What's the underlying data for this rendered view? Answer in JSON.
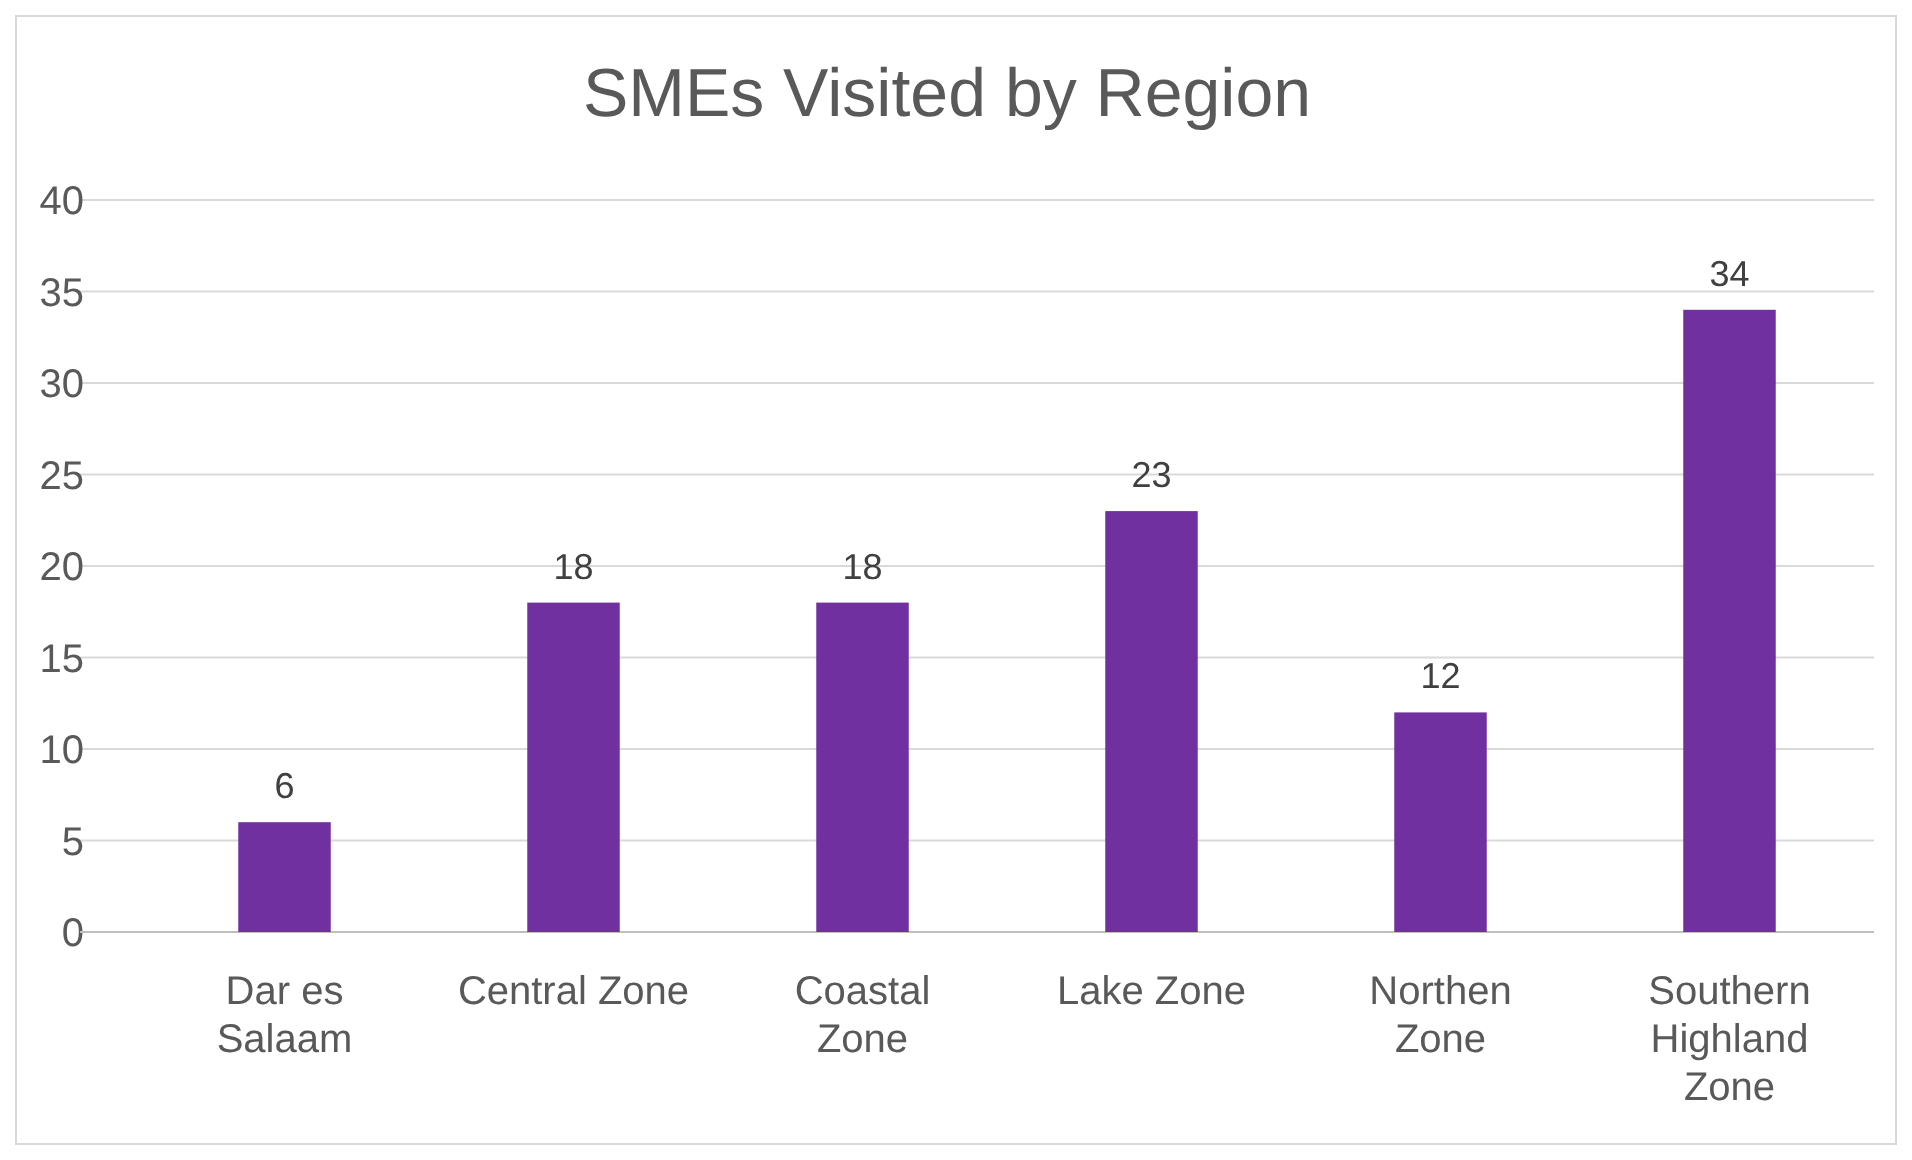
{
  "chart_data": {
    "type": "bar",
    "title": "SMEs Visited by Region",
    "categories": [
      "Dar es Salaam",
      "Central Zone",
      "Coastal Zone",
      "Lake Zone",
      "Northen Zone",
      "Southern Highland Zone"
    ],
    "values": [
      6,
      18,
      18,
      23,
      12,
      34
    ],
    "color": "#7030a0",
    "ylim": [
      0,
      40
    ],
    "yticks": [
      0,
      5,
      10,
      15,
      20,
      25,
      30,
      35,
      40
    ],
    "grid": "y",
    "data_labels": true
  }
}
